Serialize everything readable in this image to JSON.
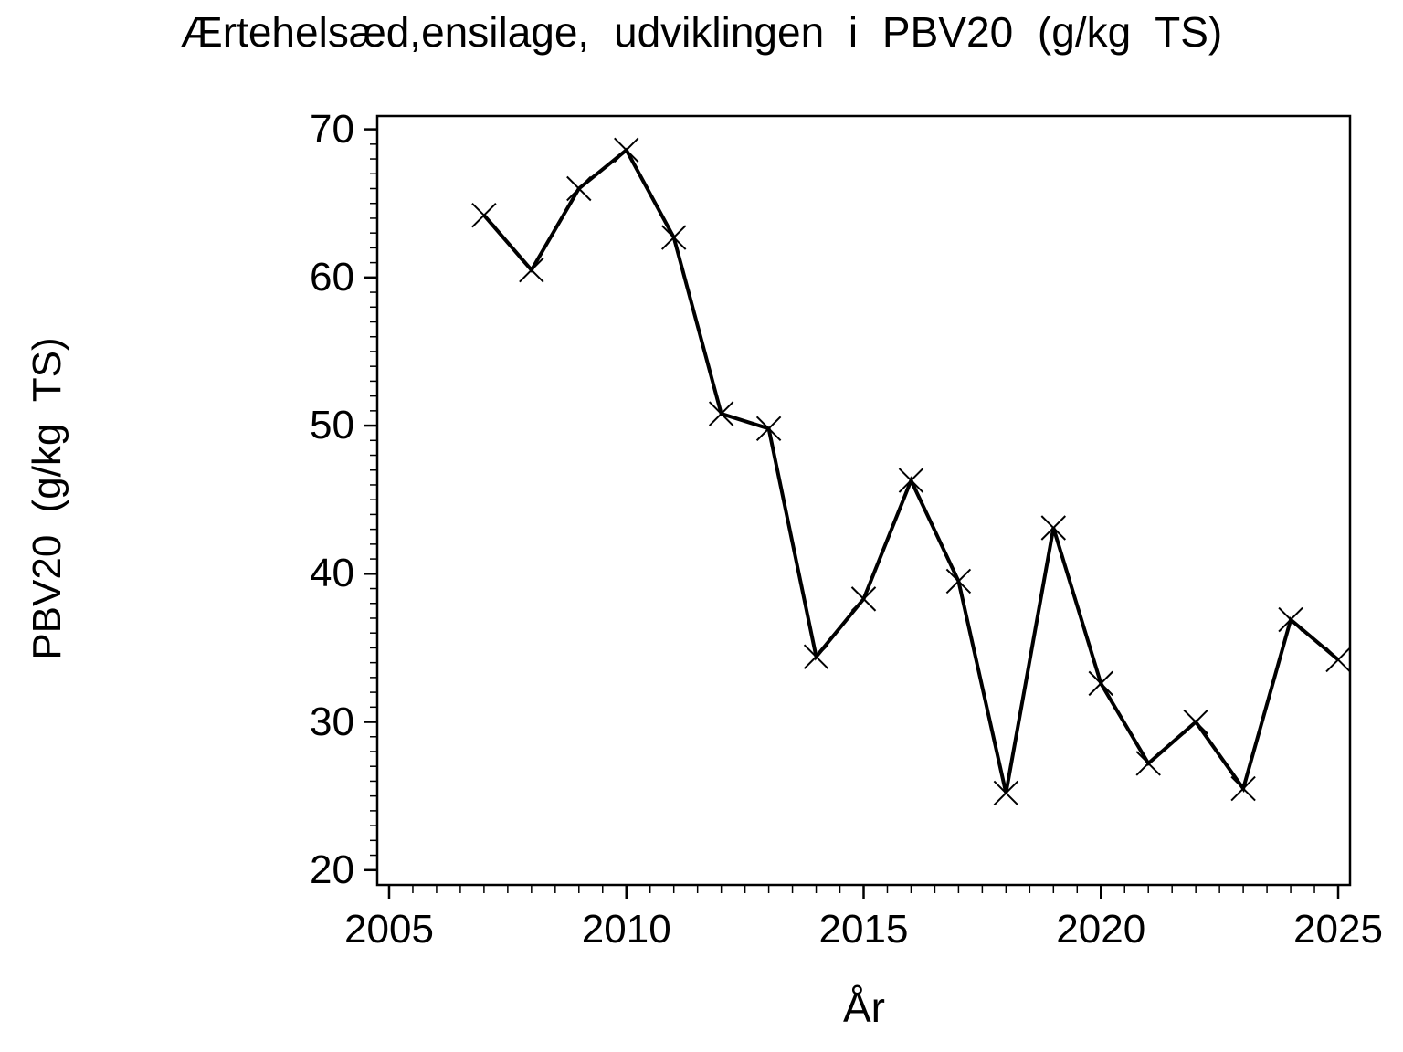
{
  "page": {
    "background_color": "#ffffff",
    "foreground_color": "#000000"
  },
  "chart_data": {
    "type": "line",
    "title": "Ærtehelsæd,ensilage, udviklingen i PBV20 (g/kg TS)",
    "xlabel": "År",
    "ylabel": "PBV20 (g/kg TS)",
    "x": [
      2007,
      2008,
      2009,
      2010,
      2011,
      2012,
      2013,
      2014,
      2015,
      2016,
      2017,
      2018,
      2019,
      2020,
      2021,
      2022,
      2023,
      2024,
      2025
    ],
    "values": [
      64.2,
      60.5,
      66.0,
      68.6,
      62.7,
      50.8,
      49.8,
      34.4,
      38.3,
      46.3,
      39.5,
      25.2,
      43.1,
      32.6,
      27.2,
      30.0,
      25.5,
      36.9,
      34.2
    ],
    "xlim": [
      2004.75,
      2025.25
    ],
    "ylim": [
      19.0,
      70.9
    ],
    "x_major_ticks": [
      2005,
      2010,
      2015,
      2020,
      2025
    ],
    "x_minor_tick_step": 0.5,
    "y_major_ticks": [
      20,
      30,
      40,
      50,
      60,
      70
    ],
    "y_minor_tick_step": 1,
    "grid": false,
    "legend": false,
    "marker": "x",
    "line_color": "#000000",
    "axis_color": "#000000",
    "background": "#ffffff"
  }
}
